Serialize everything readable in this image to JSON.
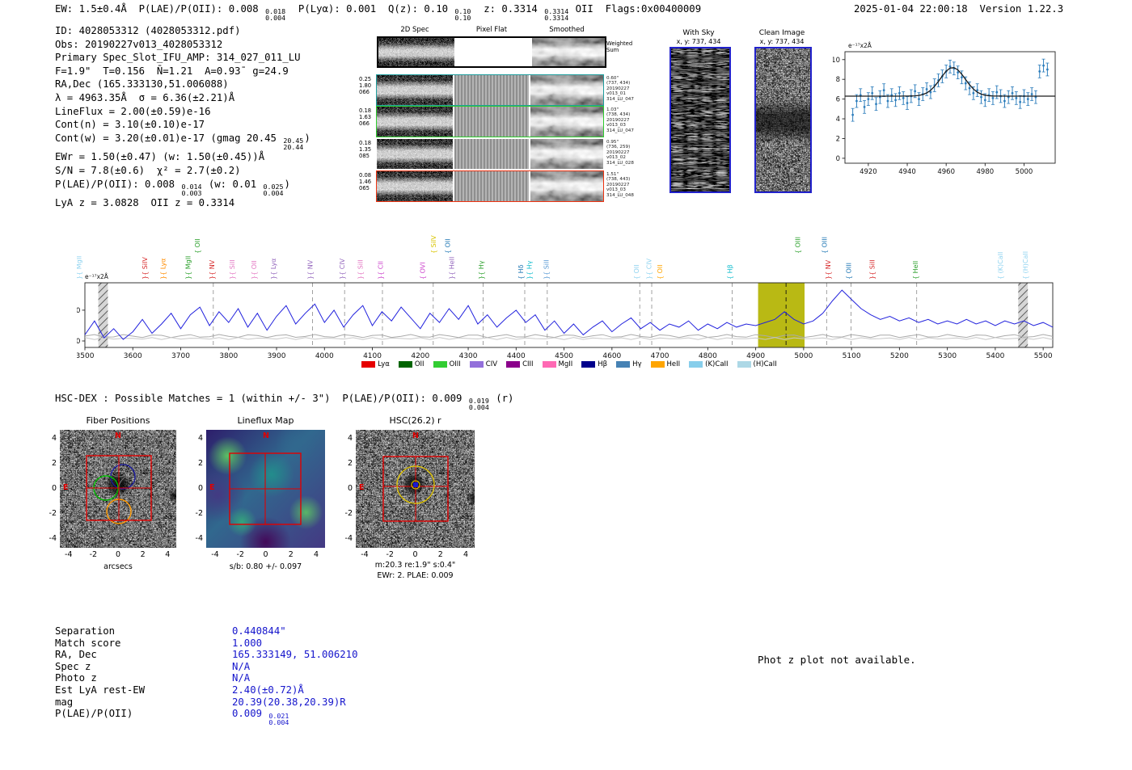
{
  "meta": {
    "timestamp_version": "2025-01-04 22:00:18  Version 1.22.3"
  },
  "header": {
    "segments": [
      {
        "t": "EW: 1.5±0.4Å  P(LAE)/P(OII): 0.008 "
      },
      {
        "hi": "0.018",
        "lo": "0.004"
      },
      {
        "t": "  P(Lyα): 0.001  Q(z): 0.10 "
      },
      {
        "hi": "0.10",
        "lo": "0.10"
      },
      {
        "t": "  z: 0.3314 "
      },
      {
        "hi": "0.3314",
        "lo": "0.3314"
      },
      {
        "t": " OII  Flags:0x00400009"
      }
    ]
  },
  "info": {
    "lines": [
      [
        {
          "t": "ID: 4028053312 (4028053312.pdf)"
        }
      ],
      [
        {
          "t": "Obs: 20190227v013_4028053312"
        }
      ],
      [
        {
          "t": "Primary Spec_Slot_IFU_AMP: 314_027_011_LU"
        }
      ],
      [
        {
          "t": "F=1.9\"  T=0.156  N̄=1.21  A=0.93̄  g=24.9"
        }
      ],
      [
        {
          "t": "RA,Dec (165.333130,51.006088)"
        }
      ],
      [
        {
          "t": "λ = 4963.35Å  σ = 6.36(±2.21)Å"
        }
      ],
      [
        {
          "t": "LineFlux = 2.00(±0.59)e-16"
        }
      ],
      [
        {
          "t": "Cont(n) = 3.10(±0.10)e-17"
        }
      ],
      [
        {
          "t": "Cont(w) = 3.20(±0.01)e-17 (gmag 20.45 "
        },
        {
          "hi": "20.45",
          "lo": "20.44"
        },
        {
          "t": ")"
        }
      ],
      [
        {
          "t": "EWr = 1.50(±0.47) (w: 1.50(±0.45))Å"
        }
      ],
      [
        {
          "t": "S/N = 7.8(±0.6)  χ² = 2.7(±0.2)"
        }
      ],
      [
        {
          "t": "P(LAE)/P(OII): 0.008 "
        },
        {
          "hi": "0.014",
          "lo": "0.003"
        },
        {
          "t": " (w: 0.01 "
        },
        {
          "hi": "0.025",
          "lo": "0.004"
        },
        {
          "t": ")"
        }
      ],
      [
        {
          "t": "LyA z = 3.0828  OII z = 0.3314"
        }
      ]
    ]
  },
  "spec2d": {
    "col_titles": [
      "2D Spec",
      "Pixel Flat",
      "Smoothed"
    ],
    "weighted_sum_label": "Weighted Sum",
    "rows": [
      {
        "left": [
          "0.25",
          "1.80",
          "066"
        ],
        "right": [
          "0.60\"",
          "(737, 434)",
          "20190227",
          "v013_01",
          "314_LU_047"
        ],
        "border": "#1f9e9e"
      },
      {
        "left": [
          "0.18",
          "1.63",
          "066"
        ],
        "right": [
          "1.03\"",
          "(738, 434)",
          "20190227",
          "v013_03",
          "314_LU_047"
        ],
        "border": "#2ecc2e"
      },
      {
        "left": [
          "0.18",
          "1.35",
          "085"
        ],
        "right": [
          "0.95\"",
          "(736, 259)",
          "20190227",
          "v013_02",
          "314_LU_028"
        ],
        "border": "none"
      },
      {
        "left": [
          "0.08",
          "1.46",
          "065"
        ],
        "right": [
          "1.51\"",
          "(738, 443)",
          "20190227",
          "v013_03",
          "314_LU_048"
        ],
        "border": "#ee3311"
      }
    ]
  },
  "with_sky": {
    "title": "With Sky",
    "coords": "x, y: 737, 434"
  },
  "clean_image": {
    "title": "Clean Image",
    "coords": "x, y: 737, 434"
  },
  "hsc_dex": {
    "segments": [
      {
        "t": "HSC-DEX : Possible Matches = 1 (within +/- 3\")  P(LAE)/P(OII): 0.009 "
      },
      {
        "hi": "0.019",
        "lo": "0.004"
      },
      {
        "t": " (r)"
      }
    ]
  },
  "cutouts": {
    "fiber": {
      "title": "Fiber Positions",
      "xlabel": "arcsecs",
      "ticks": [
        -4,
        -2,
        0,
        2,
        4
      ],
      "north_label": "N",
      "east_label": "E"
    },
    "lineflux": {
      "title": "Lineflux Map",
      "caption": "s/b: 0.80 +/- 0.097",
      "ticks": [
        -4,
        -2,
        0,
        2,
        4
      ],
      "north_label": "N",
      "east_label": "E"
    },
    "hsc": {
      "title": "HSC(26.2) r",
      "caption1": "m:20.3 re:1.9\" s:0.4\"",
      "caption2": "EWr: 2. PLAE: 0.009",
      "ticks": [
        -4,
        -2,
        0,
        2,
        4
      ],
      "north_label": "N",
      "east_label": "E"
    }
  },
  "match_table": {
    "rows": [
      {
        "label": "Separation",
        "value": "0.440844\""
      },
      {
        "label": "Match score",
        "value": "1.000"
      },
      {
        "label": "RA, Dec",
        "value": "165.333149, 51.006210"
      },
      {
        "label": "Spec z",
        "value": "N/A"
      },
      {
        "label": "Photo z",
        "value": "N/A"
      },
      {
        "label": "Est LyA rest-EW",
        "value": "2.40(±0.72)Å"
      },
      {
        "label": "mag",
        "value": "20.39(20.38,20.39)R"
      },
      {
        "label": "P(LAE)/P(OII)",
        "value": "0.009",
        "hi": "0.021",
        "lo": "0.004"
      }
    ]
  },
  "phot_z_note": "Phot z plot not available.",
  "chart_data": [
    {
      "id": "line_fit_zoom",
      "type": "scatter",
      "ylabel": "e⁻¹⁷x2Å",
      "xlim": [
        4908,
        5016
      ],
      "ylim": [
        -0.5,
        10.8
      ],
      "xticks": [
        4920,
        4940,
        4960,
        4980,
        5000
      ],
      "yticks": [
        0,
        2,
        4,
        6,
        8,
        10
      ],
      "x0": 4912,
      "dx": 2,
      "y": [
        4.4,
        5.8,
        6.4,
        5.2,
        6.0,
        6.6,
        5.5,
        6.2,
        6.9,
        5.8,
        6.4,
        5.9,
        6.6,
        6.1,
        5.6,
        6.3,
        6.8,
        6.0,
        6.5,
        7.0,
        6.7,
        7.4,
        7.9,
        8.3,
        8.8,
        9.3,
        9.1,
        8.7,
        8.2,
        7.6,
        7.1,
        6.6,
        6.9,
        6.2,
        5.9,
        6.4,
        6.1,
        6.7,
        6.3,
        5.8,
        6.2,
        6.6,
        6.1,
        5.7,
        6.3,
        6.0,
        6.5,
        6.2,
        8.8,
        9.4,
        9.0
      ],
      "yerr": 0.65,
      "marker_color": "#2e7ebc",
      "fit_color": "#1a1a1a",
      "fit": {
        "type": "gaussian",
        "baseline": 6.3,
        "amplitude": 2.9,
        "center": 4963.35,
        "sigma": 6.36
      }
    },
    {
      "id": "full_spectrum",
      "type": "line",
      "ylabel": "e⁻¹⁷x2Å",
      "xlim": [
        3500,
        5520
      ],
      "ylim": [
        -2.1,
        18.9
      ],
      "xticks": [
        3500,
        3600,
        3700,
        3800,
        3900,
        4000,
        4100,
        4200,
        4300,
        4400,
        4500,
        4600,
        4700,
        4800,
        4900,
        5000,
        5100,
        5200,
        5300,
        5400,
        5500
      ],
      "yticks": [
        0,
        10
      ],
      "line_color": "#2222dd",
      "x0": 3500,
      "dx": 20,
      "y": [
        2.0,
        6.5,
        1.0,
        4.0,
        0.5,
        3.0,
        7.0,
        2.5,
        5.5,
        9.0,
        4.0,
        8.5,
        11.0,
        5.0,
        9.5,
        6.0,
        10.5,
        4.5,
        9.0,
        3.5,
        8.0,
        11.5,
        5.5,
        9.0,
        12.0,
        6.0,
        10.0,
        4.5,
        8.5,
        11.5,
        5.0,
        9.5,
        6.5,
        11.0,
        7.5,
        4.0,
        9.0,
        6.0,
        10.5,
        7.0,
        11.5,
        5.5,
        8.5,
        4.5,
        7.5,
        10.0,
        6.0,
        8.5,
        3.5,
        6.5,
        2.5,
        5.5,
        2.0,
        4.5,
        6.5,
        3.0,
        5.5,
        7.5,
        4.0,
        6.0,
        3.5,
        5.5,
        4.5,
        6.5,
        3.5,
        5.5,
        4.0,
        6.0,
        4.5,
        5.5,
        5.0,
        6.0,
        7.0,
        9.5,
        7.0,
        5.5,
        6.5,
        9.0,
        13.0,
        16.5,
        13.5,
        10.5,
        8.5,
        7.0,
        8.0,
        6.5,
        7.5,
        6.0,
        7.0,
        5.5,
        6.5,
        5.5,
        7.0,
        5.5,
        6.5,
        5.0,
        6.5,
        5.5,
        6.5,
        5.0,
        6.0,
        4.5,
        5.5
      ],
      "highlight_band": {
        "x0": 4905,
        "x1": 5002,
        "color": "#b3b300"
      },
      "bad_sky_bands": [
        [
          3528,
          3548
        ],
        [
          5448,
          5468
        ]
      ],
      "detect_line": 4963.35,
      "dashed_lines": [
        3768,
        3975,
        4042,
        4121,
        4227,
        4331,
        4418,
        4465,
        4658,
        4683,
        4851,
        5048,
        5099,
        5236
      ],
      "emission_labels": [
        {
          "text": "}{ MgII",
          "wl": 3492,
          "color": "#8fd3f0",
          "tier": 1
        },
        {
          "text": "}{ SiIV",
          "wl": 3630,
          "color": "#d62728",
          "tier": 1
        },
        {
          "text": "}{ Lyα",
          "wl": 3668,
          "color": "#ff8c00",
          "tier": 1
        },
        {
          "text": "}{ MgII",
          "wl": 3720,
          "color": "#2ca02c",
          "tier": 1
        },
        {
          "text": "{ OII",
          "wl": 3740,
          "color": "#2ca02c",
          "tier": 2
        },
        {
          "text": "}{ NV",
          "wl": 3770,
          "color": "#d62728",
          "tier": 1
        },
        {
          "text": "}{ SiII",
          "wl": 3812,
          "color": "#e377c2",
          "tier": 1
        },
        {
          "text": "}{ OII",
          "wl": 3858,
          "color": "#e377c2",
          "tier": 1
        },
        {
          "text": "}{ Lyα",
          "wl": 3898,
          "color": "#9467bd",
          "tier": 1
        },
        {
          "text": "}{ NV",
          "wl": 3975,
          "color": "#9467bd",
          "tier": 1
        },
        {
          "text": "}{ CIV",
          "wl": 4042,
          "color": "#9467bd",
          "tier": 1
        },
        {
          "text": "}{ SiII",
          "wl": 4080,
          "color": "#e377c2",
          "tier": 1
        },
        {
          "text": "}{ CII",
          "wl": 4122,
          "color": "#cc44cc",
          "tier": 1
        },
        {
          "text": "{ OVI",
          "wl": 4210,
          "color": "#cc44cc",
          "tier": 1
        },
        {
          "text": "{ SiIV",
          "wl": 4232,
          "color": "#d8c400",
          "tier": 2
        },
        {
          "text": "{ OII",
          "wl": 4262,
          "color": "#1f77b4",
          "tier": 2
        },
        {
          "text": "}{ HeII",
          "wl": 4270,
          "color": "#9467bd",
          "tier": 1
        },
        {
          "text": "}{ Hγ",
          "wl": 4332,
          "color": "#2ca02c",
          "tier": 1
        },
        {
          "text": "{ Hδ",
          "wl": 4415,
          "color": "#1f77b4",
          "tier": 1
        },
        {
          "text": "}{ Hγ",
          "wl": 4432,
          "color": "#17becf",
          "tier": 1
        },
        {
          "text": "}{ SiII",
          "wl": 4468,
          "color": "#5b9bd5",
          "tier": 1
        },
        {
          "text": "{ OII",
          "wl": 4656,
          "color": "#8fd3f0",
          "tier": 1
        },
        {
          "text": "}{ CIV",
          "wl": 4682,
          "color": "#8fd3f0",
          "tier": 1
        },
        {
          "text": "{ OII",
          "wl": 4705,
          "color": "#ffa500",
          "tier": 1
        },
        {
          "text": "{ Hβ",
          "wl": 4851,
          "color": "#17becf",
          "tier": 1
        },
        {
          "text": "{ OIII",
          "wl": 4993,
          "color": "#2ca02c",
          "tier": 2
        },
        {
          "text": "{ OIII",
          "wl": 5048,
          "color": "#1f77b4",
          "tier": 2
        },
        {
          "text": "}{ NV",
          "wl": 5056,
          "color": "#d62728",
          "tier": 1
        },
        {
          "text": "{ OIII",
          "wl": 5099,
          "color": "#1f77b4",
          "tier": 1
        },
        {
          "text": "}{ SiII",
          "wl": 5148,
          "color": "#d62728",
          "tier": 1
        },
        {
          "text": "{ HeII",
          "wl": 5238,
          "color": "#2ca02c",
          "tier": 1
        },
        {
          "text": "{ (K)CaII",
          "wl": 5415,
          "color": "#8fd3f0",
          "tier": 1
        },
        {
          "text": "{ (H)CaII",
          "wl": 5468,
          "color": "#8fd3f0",
          "tier": 1
        }
      ],
      "legend": [
        {
          "label": "Lyα",
          "color": "#e60000"
        },
        {
          "label": "OII",
          "color": "#006400"
        },
        {
          "label": "OIII",
          "color": "#32cd32"
        },
        {
          "label": "CIV",
          "color": "#9370db"
        },
        {
          "label": "CIII",
          "color": "#8b008b"
        },
        {
          "label": "MgII",
          "color": "#ff69b4"
        },
        {
          "label": "Hβ",
          "color": "#00008b"
        },
        {
          "label": "Hγ",
          "color": "#4682b4"
        },
        {
          "label": "HeII",
          "color": "#ffa500"
        },
        {
          "label": "(K)CaII",
          "color": "#87ceeb"
        },
        {
          "label": "(H)CaII",
          "color": "#add8e6"
        }
      ]
    }
  ]
}
